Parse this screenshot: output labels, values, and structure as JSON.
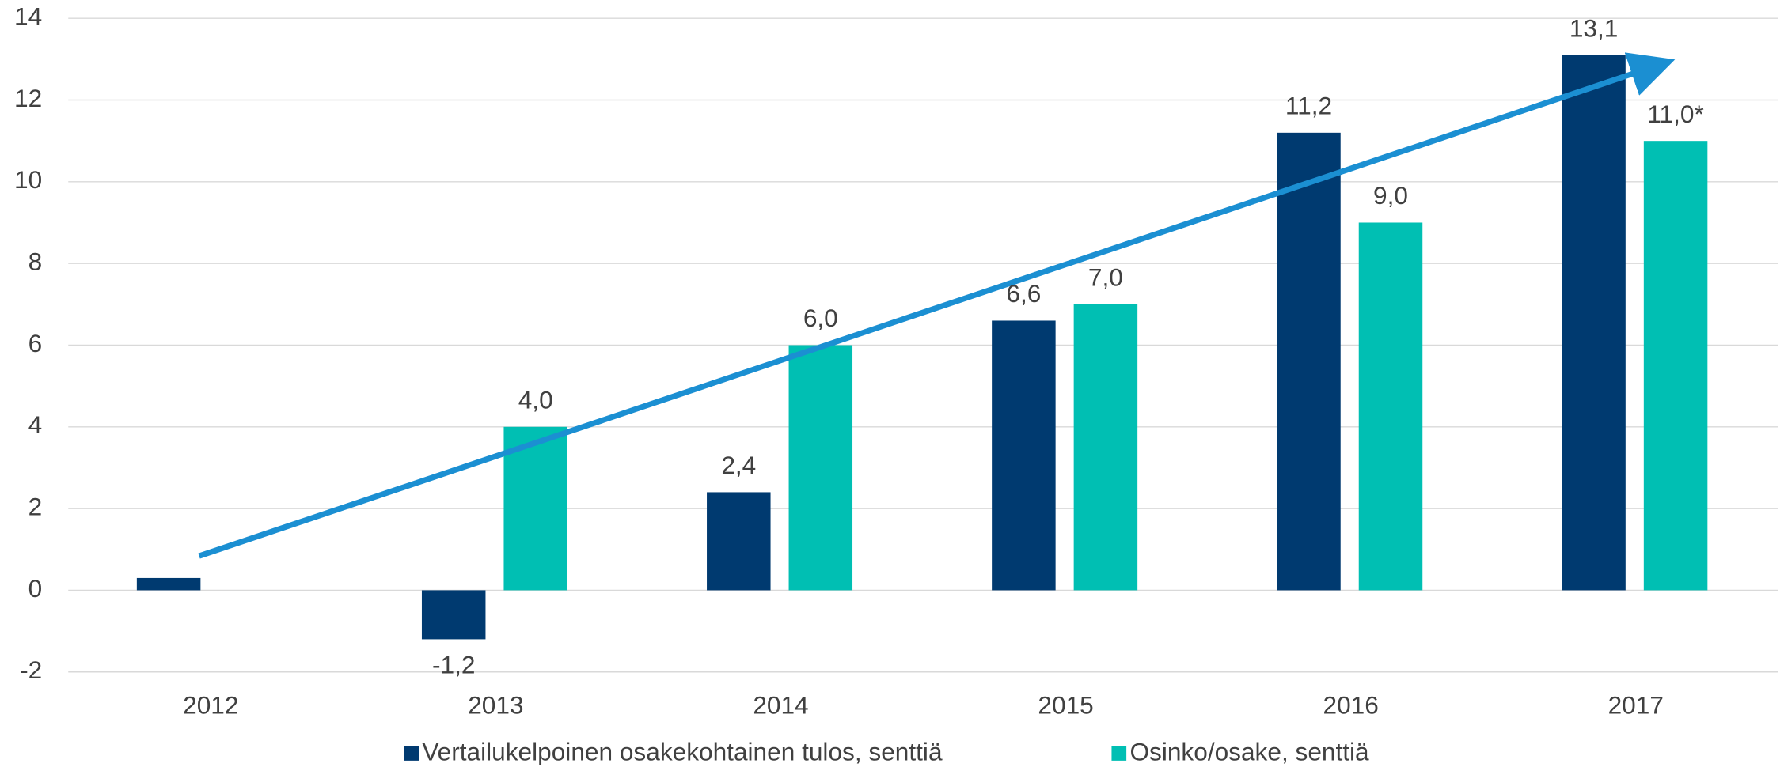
{
  "chart_data": {
    "type": "bar",
    "categories": [
      "2012",
      "2013",
      "2014",
      "2015",
      "2016",
      "2017"
    ],
    "series": [
      {
        "name": "Vertailukelpoinen osakekohtainen tulos, senttiä",
        "color": "#003a70",
        "values": [
          0.3,
          -1.2,
          2.4,
          6.6,
          11.2,
          13.1
        ],
        "value_labels": [
          null,
          "-1,2",
          "2,4",
          "6,6",
          "11,2",
          "13,1"
        ]
      },
      {
        "name": "Osinko/osake, senttiä",
        "color": "#00bfb3",
        "values": [
          null,
          4.0,
          6.0,
          7.0,
          9.0,
          11.0
        ],
        "value_labels": [
          null,
          "4,0",
          "6,0",
          "7,0",
          "9,0",
          "11,0*"
        ]
      }
    ],
    "ylim": [
      -2,
      14
    ],
    "yticks": [
      -2,
      0,
      2,
      4,
      6,
      8,
      10,
      12,
      14
    ],
    "grid": true,
    "legend": "bottom"
  }
}
